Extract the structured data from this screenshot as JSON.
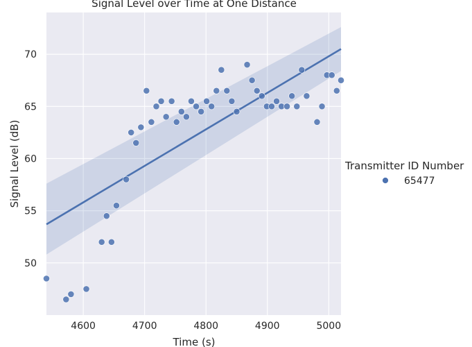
{
  "chart_data": {
    "type": "scatter",
    "title": "Signal Level over Time at One Distance",
    "xlabel": "Time (s)",
    "ylabel": "Signal Level (dB)",
    "xlim": [
      4540,
      5020
    ],
    "ylim": [
      45,
      74
    ],
    "xticks": [
      4600,
      4700,
      4800,
      4900,
      5000
    ],
    "yticks": [
      50,
      55,
      60,
      65,
      70
    ],
    "grid": true,
    "legend": {
      "title": "Transmitter ID Number",
      "placement": "right",
      "entries": [
        "65477"
      ]
    },
    "colors": {
      "points": "#4c72b0",
      "line": "#4c72b0",
      "band": "#4c72b0",
      "background": "#eaeaf2",
      "grid": "#ffffff"
    },
    "regression": {
      "x": [
        4540,
        5020
      ],
      "y": [
        53.7,
        70.5
      ],
      "ci_lower": [
        50.8,
        68.4
      ],
      "ci_upper": [
        57.6,
        72.6
      ]
    },
    "series": [
      {
        "name": "65477",
        "x": [
          4540,
          4572,
          4580,
          4605,
          4630,
          4638,
          4646,
          4654,
          4670,
          4678,
          4686,
          4694,
          4703,
          4711,
          4719,
          4727,
          4735,
          4744,
          4752,
          4760,
          4768,
          4776,
          4784,
          4792,
          4801,
          4809,
          4817,
          4825,
          4834,
          4842,
          4850,
          4867,
          4875,
          4883,
          4891,
          4899,
          4907,
          4915,
          4923,
          4932,
          4940,
          4948,
          4956,
          4964,
          4981,
          4989,
          4997,
          5005,
          5013,
          5020
        ],
        "y": [
          48.5,
          46.5,
          47.0,
          47.5,
          52.0,
          54.5,
          52.0,
          55.5,
          58.0,
          62.5,
          61.5,
          63.0,
          66.5,
          63.5,
          65.0,
          65.5,
          64.0,
          65.5,
          63.5,
          64.5,
          64.0,
          65.5,
          65.0,
          64.5,
          65.5,
          65.0,
          66.5,
          68.5,
          66.5,
          65.5,
          64.5,
          69.0,
          67.5,
          66.5,
          66.0,
          65.0,
          65.0,
          65.5,
          65.0,
          65.0,
          66.0,
          65.0,
          68.5,
          66.0,
          63.5,
          65.0,
          68.0,
          68.0,
          66.5,
          67.5
        ]
      }
    ]
  }
}
